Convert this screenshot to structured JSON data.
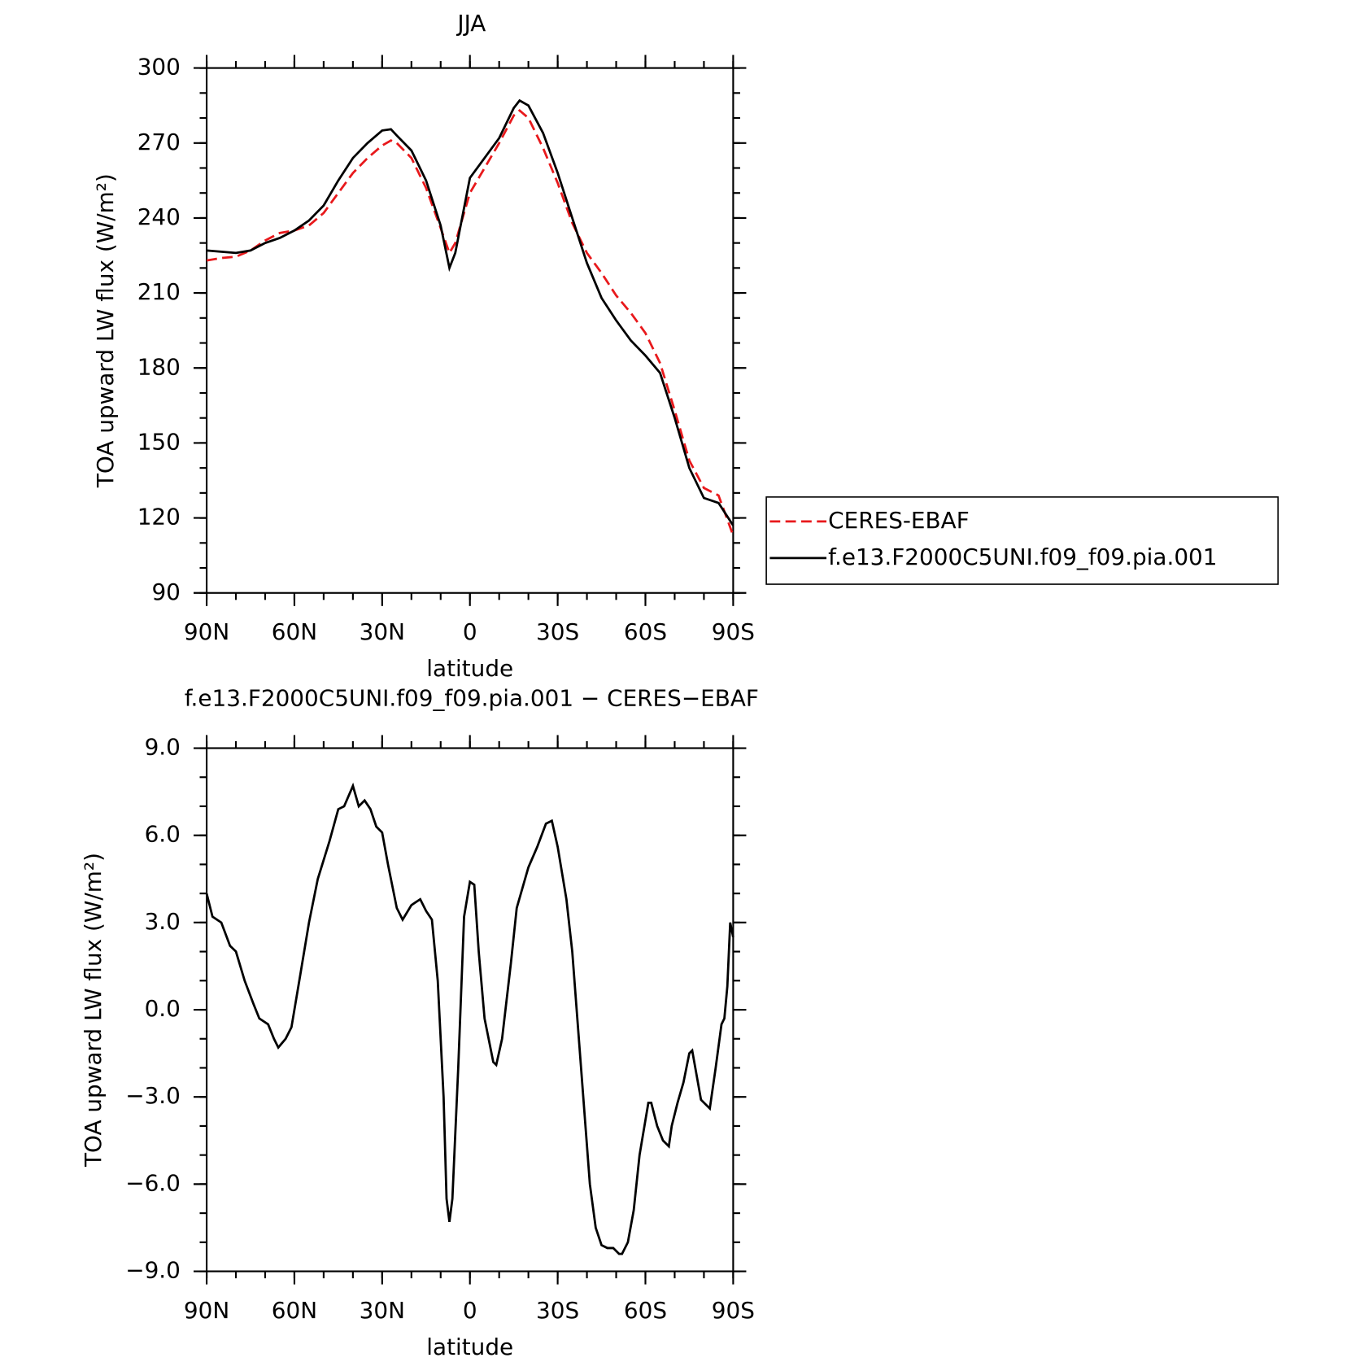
{
  "chart_data": [
    {
      "type": "line",
      "title": "JJA",
      "xlabel": "latitude",
      "ylabel": "TOA upward LW flux (W/m²)",
      "x": [
        90,
        85,
        80,
        75,
        70,
        65,
        60,
        55,
        50,
        45,
        40,
        35,
        30,
        27,
        25,
        20,
        15,
        10,
        7,
        5,
        0,
        -5,
        -10,
        -15,
        -17,
        -20,
        -25,
        -30,
        -35,
        -40,
        -45,
        -50,
        -55,
        -60,
        -65,
        -70,
        -75,
        -80,
        -85,
        -90
      ],
      "series": [
        {
          "name": "CERES-EBAF",
          "color": "#e8191c",
          "dash": true,
          "values": [
            223,
            224,
            224.5,
            227,
            231,
            234,
            235,
            237,
            242,
            250,
            258,
            264,
            269,
            271,
            270,
            264,
            252,
            236,
            226,
            230,
            250,
            260,
            270,
            281,
            283,
            280,
            268,
            254,
            238,
            226,
            218,
            209,
            202,
            194,
            182,
            163,
            143,
            132,
            129,
            113
          ]
        },
        {
          "name": "f.e13.F2000C5UNI.f09_f09.pia.001",
          "color": "#000000",
          "dash": false,
          "values": [
            227,
            226.5,
            226,
            227,
            230,
            232,
            235,
            239,
            245,
            255,
            264,
            270,
            275,
            275.5,
            273,
            267,
            255,
            237,
            220,
            226,
            256,
            264,
            272,
            284,
            287,
            285,
            274,
            258,
            240,
            222,
            208,
            199,
            191,
            185,
            178,
            160,
            140,
            128,
            126,
            117
          ]
        }
      ],
      "xlim": [
        90,
        -90
      ],
      "xticks": [
        {
          "value": 90,
          "label": "90N"
        },
        {
          "value": 60,
          "label": "60N"
        },
        {
          "value": 30,
          "label": "30N"
        },
        0,
        {
          "value": -30,
          "label": "30S"
        },
        {
          "value": -60,
          "label": "60S"
        },
        {
          "value": -90,
          "label": "90S"
        }
      ],
      "ylim": [
        90,
        300
      ],
      "yticks": [
        90,
        120,
        150,
        180,
        210,
        240,
        270,
        300
      ],
      "legend": "right"
    },
    {
      "type": "line",
      "title": "f.e13.F2000C5UNI.f09_f09.pia.001 − CERES−EBAF",
      "xlabel": "latitude",
      "ylabel": "TOA upward LW flux (W/m²)",
      "x": [
        90,
        88,
        85,
        82,
        80,
        77,
        74,
        72,
        69,
        67,
        65.5,
        63,
        61,
        58,
        55,
        52,
        48,
        45,
        43,
        40,
        38,
        36,
        34,
        32,
        30,
        28,
        25,
        23,
        20,
        17,
        15,
        13,
        11,
        9,
        8,
        7,
        6,
        4,
        2,
        0,
        -1.5,
        -3,
        -5,
        -8,
        -9,
        -11,
        -14,
        -16,
        -20,
        -23,
        -26,
        -28,
        -30,
        -33,
        -35,
        -38,
        -41,
        -43,
        -45,
        -47,
        -49,
        -51,
        -52,
        -54,
        -56,
        -58,
        -61,
        -62,
        -64,
        -66,
        -68,
        -69,
        -71,
        -73,
        -75,
        -76,
        -79,
        -82,
        -84,
        -86,
        -87,
        -88,
        -89,
        -90
      ],
      "values": [
        4.0,
        3.2,
        3.0,
        2.2,
        2.0,
        1.0,
        0.2,
        -0.3,
        -0.5,
        -1.0,
        -1.3,
        -1.0,
        -0.6,
        1.2,
        3.0,
        4.5,
        5.8,
        6.9,
        7.0,
        7.7,
        7.0,
        7.2,
        6.9,
        6.3,
        6.1,
        5.0,
        3.5,
        3.1,
        3.6,
        3.8,
        3.4,
        3.1,
        1.0,
        -3.0,
        -6.5,
        -7.3,
        -6.5,
        -2.0,
        3.2,
        4.4,
        4.3,
        2.0,
        -0.3,
        -1.8,
        -1.9,
        -1.0,
        1.6,
        3.5,
        4.9,
        5.6,
        6.4,
        6.5,
        5.6,
        3.8,
        2.0,
        -2.0,
        -6.0,
        -7.5,
        -8.1,
        -8.2,
        -8.2,
        -8.4,
        -8.4,
        -8.0,
        -6.9,
        -5.0,
        -3.2,
        -3.2,
        -4.0,
        -4.5,
        -4.7,
        -4.0,
        -3.2,
        -2.5,
        -1.5,
        -1.4,
        -3.1,
        -3.4,
        -2.0,
        -0.5,
        -0.3,
        0.8,
        3.0,
        2.5
      ],
      "color": "#000000",
      "xlim": [
        90,
        -90
      ],
      "xticks": [
        {
          "value": 90,
          "label": "90N"
        },
        {
          "value": 60,
          "label": "60N"
        },
        {
          "value": 30,
          "label": "30N"
        },
        0,
        {
          "value": -30,
          "label": "30S"
        },
        {
          "value": -60,
          "label": "60S"
        },
        {
          "value": -90,
          "label": "90S"
        }
      ],
      "ylim": [
        -9,
        9
      ],
      "yticks": [
        {
          "value": -9,
          "label": "−9.0"
        },
        {
          "value": -6,
          "label": "−6.0"
        },
        {
          "value": -3,
          "label": "−3.0"
        },
        {
          "value": 0,
          "label": "0.0"
        },
        {
          "value": 3,
          "label": "3.0"
        },
        {
          "value": 6,
          "label": "6.0"
        },
        {
          "value": 9,
          "label": "9.0"
        }
      ]
    }
  ]
}
